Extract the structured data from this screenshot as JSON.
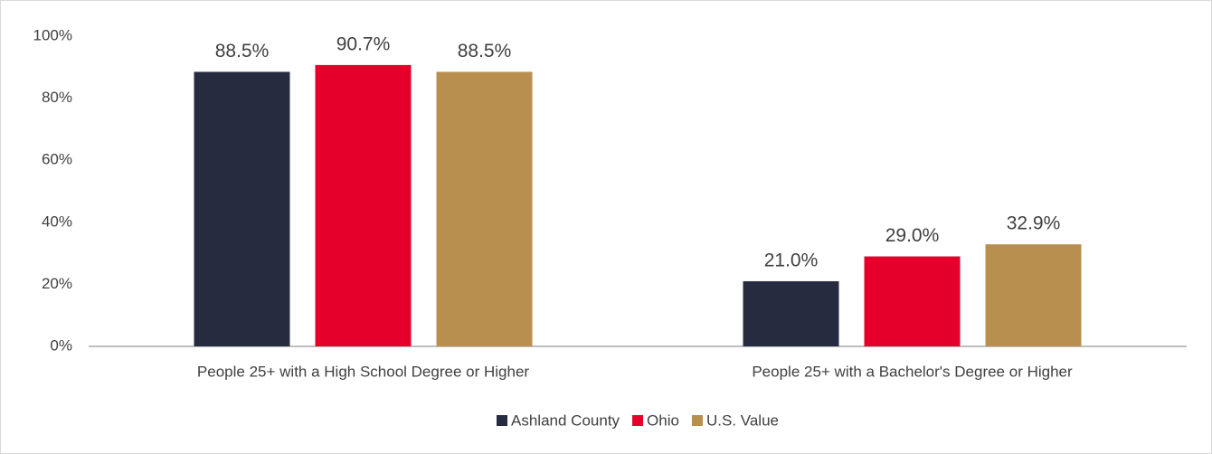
{
  "chart_data": {
    "type": "bar",
    "categories": [
      "People 25+ with a High School Degree or Higher",
      "People 25+ with a Bachelor's Degree or Higher"
    ],
    "series": [
      {
        "name": "Ashland County",
        "color": "#262b40",
        "values": [
          88.5,
          21.0
        ],
        "value_labels": [
          "88.5%",
          "21.0%"
        ]
      },
      {
        "name": "Ohio",
        "color": "#e4002b",
        "values": [
          90.7,
          29.0
        ],
        "value_labels": [
          "90.7%",
          "29.0%"
        ]
      },
      {
        "name": "U.S. Value",
        "color": "#b98f50",
        "values": [
          88.5,
          32.9
        ],
        "value_labels": [
          "88.5%",
          "32.9%"
        ]
      }
    ],
    "ylim": [
      0,
      100
    ],
    "yticks": [
      {
        "value": 0,
        "label": "0%"
      },
      {
        "value": 20,
        "label": "20%"
      },
      {
        "value": 40,
        "label": "40%"
      },
      {
        "value": 60,
        "label": "60%"
      },
      {
        "value": 80,
        "label": "80%"
      },
      {
        "value": 100,
        "label": "100%"
      }
    ],
    "grid": false,
    "legend": "bottom"
  }
}
